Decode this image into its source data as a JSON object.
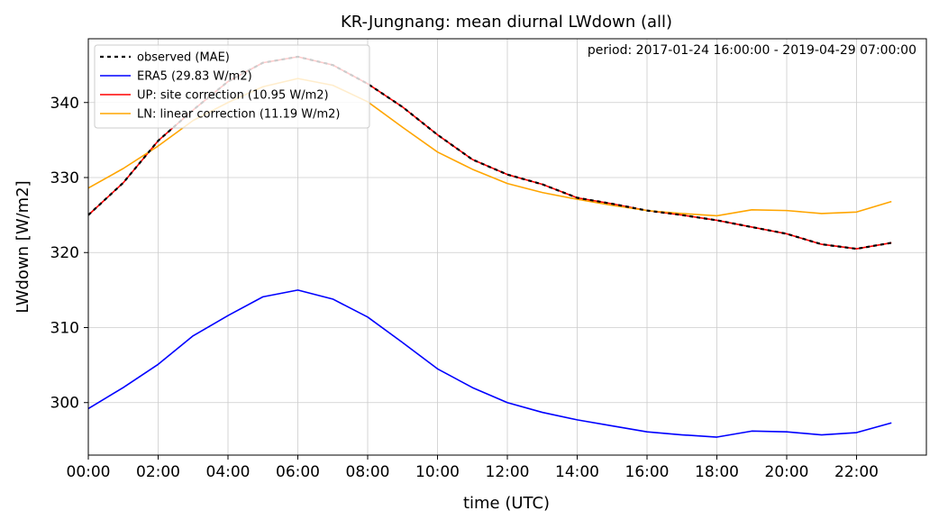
{
  "chart_data": {
    "type": "line",
    "title": "KR-Jungnang: mean diurnal LWdown (all)",
    "annotation": "period: 2017-01-24 16:00:00 - 2019-04-29 07:00:00",
    "xlabel": "time (UTC)",
    "ylabel": "LWdown [W/m2]",
    "xlim": [
      0,
      24
    ],
    "ylim": [
      293,
      348.5
    ],
    "x_ticks": [
      0,
      2,
      4,
      6,
      8,
      10,
      12,
      14,
      16,
      18,
      20,
      22
    ],
    "x_tick_labels": [
      "00:00",
      "02:00",
      "04:00",
      "06:00",
      "08:00",
      "10:00",
      "12:00",
      "14:00",
      "16:00",
      "18:00",
      "20:00",
      "22:00"
    ],
    "y_ticks": [
      300,
      310,
      320,
      330,
      340
    ],
    "y_tick_labels": [
      "300",
      "310",
      "320",
      "330",
      "340"
    ],
    "grid": true,
    "legend_position": "top-left",
    "x": [
      0,
      1,
      2,
      3,
      4,
      5,
      6,
      7,
      8,
      9,
      10,
      11,
      12,
      13,
      14,
      15,
      16,
      17,
      18,
      19,
      20,
      21,
      22,
      23
    ],
    "series": [
      {
        "name": "ERA5 (29.83 W/m2)",
        "color": "#0000ff",
        "dash": "solid",
        "values": [
          299.2,
          302.0,
          305.1,
          308.9,
          311.6,
          314.1,
          315.0,
          313.8,
          311.4,
          308.0,
          304.5,
          302.0,
          300.0,
          298.7,
          297.7,
          296.9,
          296.1,
          295.7,
          295.4,
          296.2,
          296.1,
          295.7,
          296.0,
          297.3
        ]
      },
      {
        "name": "UP: site correction (10.95 W/m2)",
        "color": "#ff0000",
        "dash": "solid",
        "values": [
          325.0,
          329.3,
          334.9,
          339.0,
          342.8,
          345.3,
          346.1,
          345.0,
          342.5,
          339.4,
          335.7,
          332.4,
          330.4,
          329.1,
          327.3,
          326.5,
          325.6,
          325.0,
          324.3,
          323.4,
          322.5,
          321.1,
          320.5,
          321.3
        ]
      },
      {
        "name": "LN: linear correction (11.19 W/m2)",
        "color": "#ffa500",
        "dash": "solid",
        "values": [
          328.6,
          331.2,
          334.2,
          337.6,
          340.0,
          342.1,
          343.2,
          342.3,
          340.1,
          336.7,
          333.4,
          331.1,
          329.2,
          328.0,
          327.1,
          326.3,
          325.6,
          325.2,
          324.9,
          325.7,
          325.6,
          325.2,
          325.4,
          326.8
        ]
      },
      {
        "name": "observed (MAE)",
        "color": "#000000",
        "dash": "dotted",
        "values": [
          325.0,
          329.3,
          334.9,
          339.0,
          342.8,
          345.3,
          346.1,
          345.0,
          342.5,
          339.4,
          335.7,
          332.4,
          330.4,
          329.1,
          327.3,
          326.5,
          325.6,
          325.0,
          324.3,
          323.4,
          322.5,
          321.1,
          320.5,
          321.3
        ]
      }
    ],
    "legend_order": [
      3,
      0,
      1,
      2
    ]
  }
}
